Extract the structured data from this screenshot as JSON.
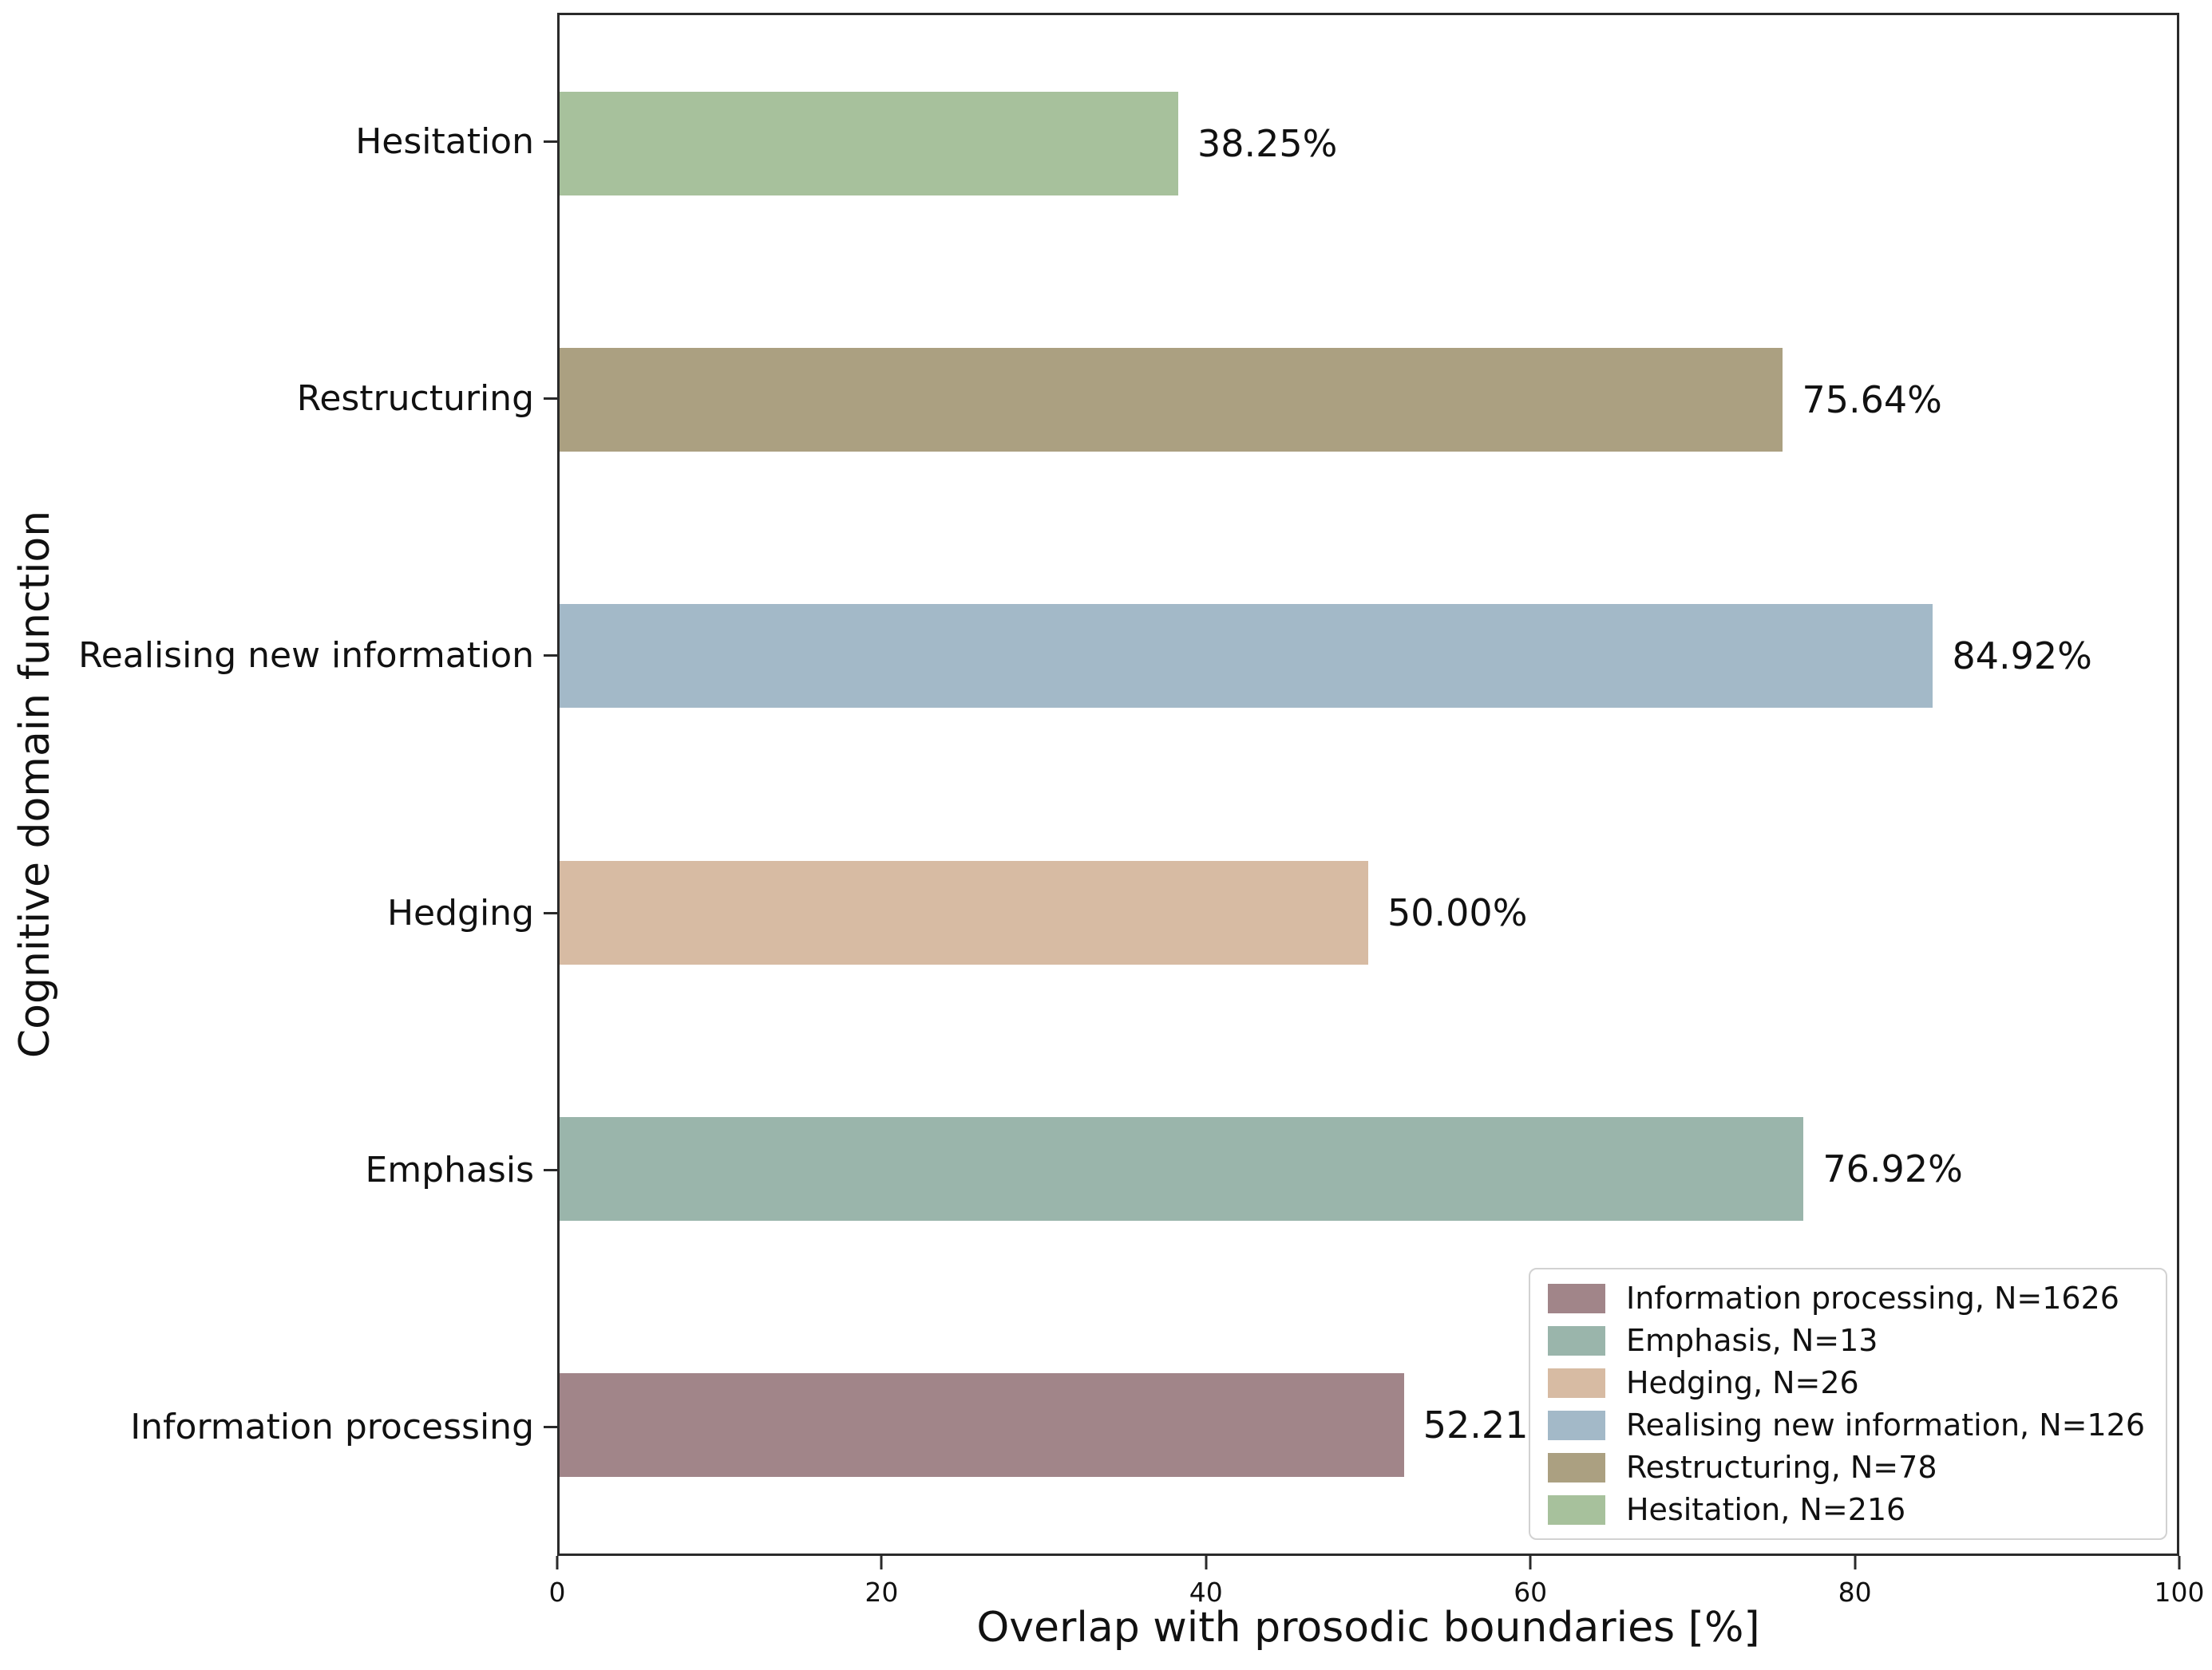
{
  "chart_data": {
    "type": "bar",
    "orientation": "horizontal",
    "xlabel": "Overlap with prosodic boundaries [%]",
    "ylabel": "Cognitive domain function",
    "xlim": [
      0,
      100
    ],
    "x_ticks": [
      "0",
      "20",
      "40",
      "60",
      "80",
      "100"
    ],
    "x_tick_values": [
      0,
      20,
      40,
      60,
      80,
      100
    ],
    "grid": false,
    "categories": [
      "Hesitation",
      "Restructuring",
      "Realising new information",
      "Hedging",
      "Emphasis",
      "Information processing"
    ],
    "values": [
      38.25,
      75.64,
      84.92,
      50.0,
      76.92,
      52.21
    ],
    "bar_labels": [
      "38.25%",
      "75.64%",
      "84.92%",
      "50.00%",
      "76.92%",
      "52.21%"
    ],
    "bar_colors": [
      "#a7c19c",
      "#aba081",
      "#a3b9c8",
      "#d7bba3",
      "#9ab5ab",
      "#a18589"
    ],
    "legend": {
      "position": "lower right",
      "entries": [
        {
          "label": "Information processing, N=1626",
          "color": "#a18589"
        },
        {
          "label": "Emphasis, N=13",
          "color": "#9ab5ab"
        },
        {
          "label": "Hedging, N=26",
          "color": "#d7bba3"
        },
        {
          "label": "Realising new information, N=126",
          "color": "#a3b9c8"
        },
        {
          "label": "Restructuring, N=78",
          "color": "#aba081"
        },
        {
          "label": "Hesitation, N=216",
          "color": "#a7c19c"
        }
      ]
    }
  }
}
